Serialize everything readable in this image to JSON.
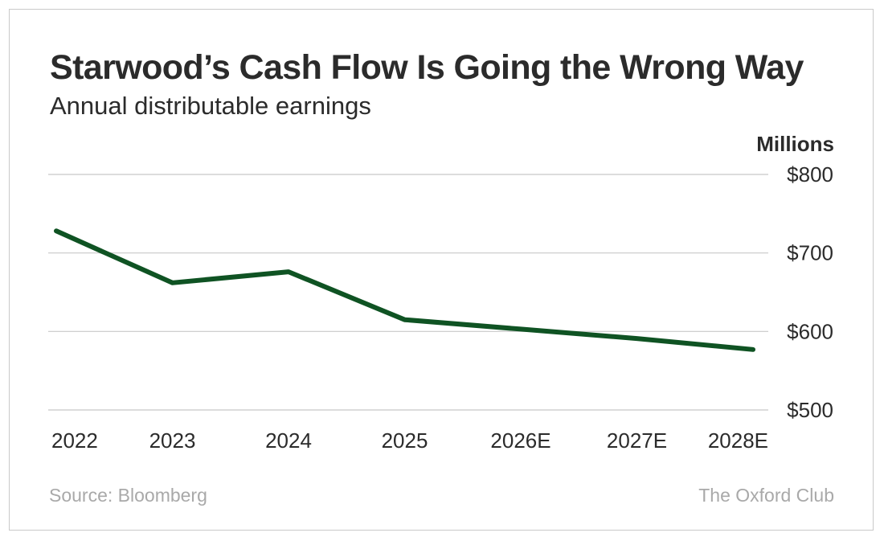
{
  "chart_data": {
    "type": "line",
    "title": "Starwood’s Cash Flow Is Going the Wrong Way",
    "subtitle": "Annual distributable earnings",
    "ylabel": "Millions",
    "xlabel": "",
    "categories": [
      "2022",
      "2023",
      "2024",
      "2025",
      "2026E",
      "2027E",
      "2028E"
    ],
    "series": [
      {
        "values": [
          728,
          662,
          676,
          615,
          603,
          591,
          577
        ],
        "color": "#0f5323"
      }
    ],
    "ylim": [
      500,
      800
    ],
    "yticks": [
      {
        "value": 800,
        "label": "$800"
      },
      {
        "value": 700,
        "label": "$700"
      },
      {
        "value": 600,
        "label": "$600"
      },
      {
        "value": 500,
        "label": "$500"
      }
    ],
    "grid": true,
    "legend": "none"
  },
  "footer": {
    "source": "Source: Bloomberg",
    "brand": "The Oxford Club"
  },
  "colors": {
    "line": "#0f5323",
    "grid": "#c8c8c8",
    "text": "#2b2b2b",
    "muted": "#a9a9a9"
  }
}
